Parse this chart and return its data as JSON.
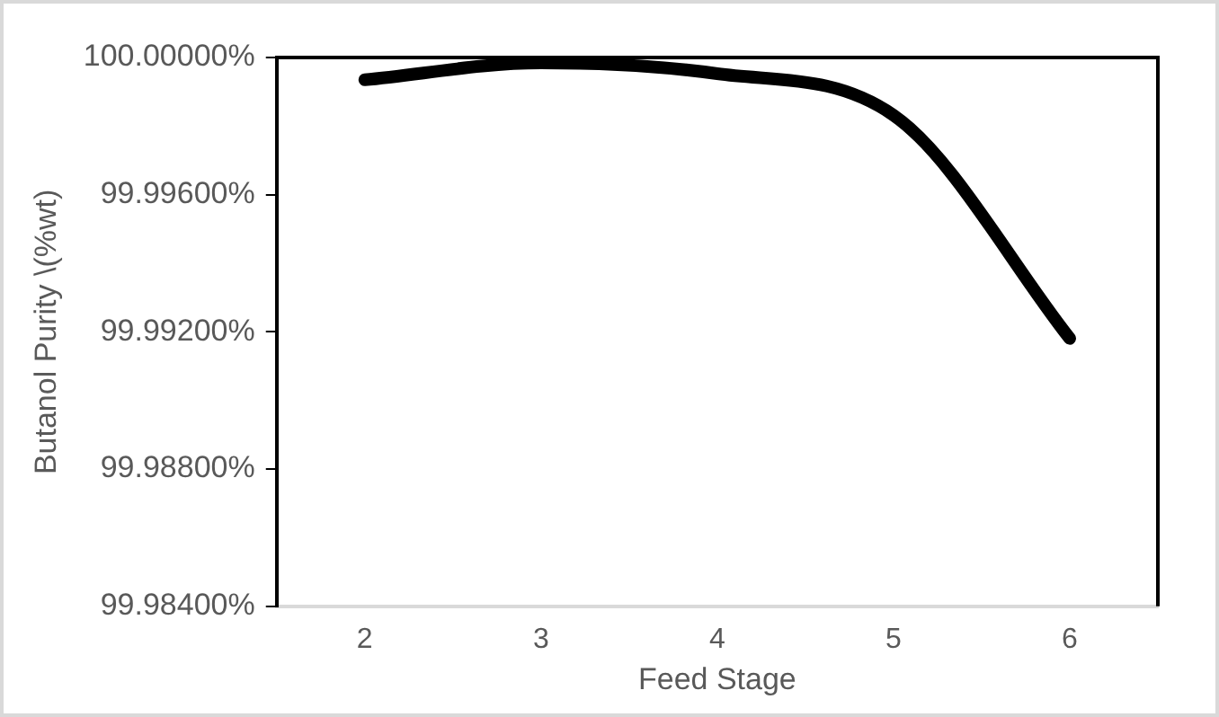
{
  "chart_data": {
    "type": "line",
    "xlabel": "Feed Stage",
    "ylabel": "Butanol Purity \\(%wt)",
    "categories": [
      "2",
      "3",
      "4",
      "5",
      "6"
    ],
    "series": [
      {
        "color": "#000000",
        "values": [
          99.99935,
          99.99984,
          99.99953,
          99.99832,
          99.99181
        ]
      }
    ],
    "ylim": [
      99.984,
      100.0
    ],
    "yticks": [
      {
        "value": 99.984,
        "label": "99.98400%"
      },
      {
        "value": 99.988,
        "label": "99.98800%"
      },
      {
        "value": 99.992,
        "label": "99.99200%"
      },
      {
        "value": 99.996,
        "label": "99.99600%"
      },
      {
        "value": 100.0,
        "label": "100.00000%"
      }
    ],
    "grid": false,
    "legend": false,
    "marker": "none",
    "line_style": "solid"
  }
}
